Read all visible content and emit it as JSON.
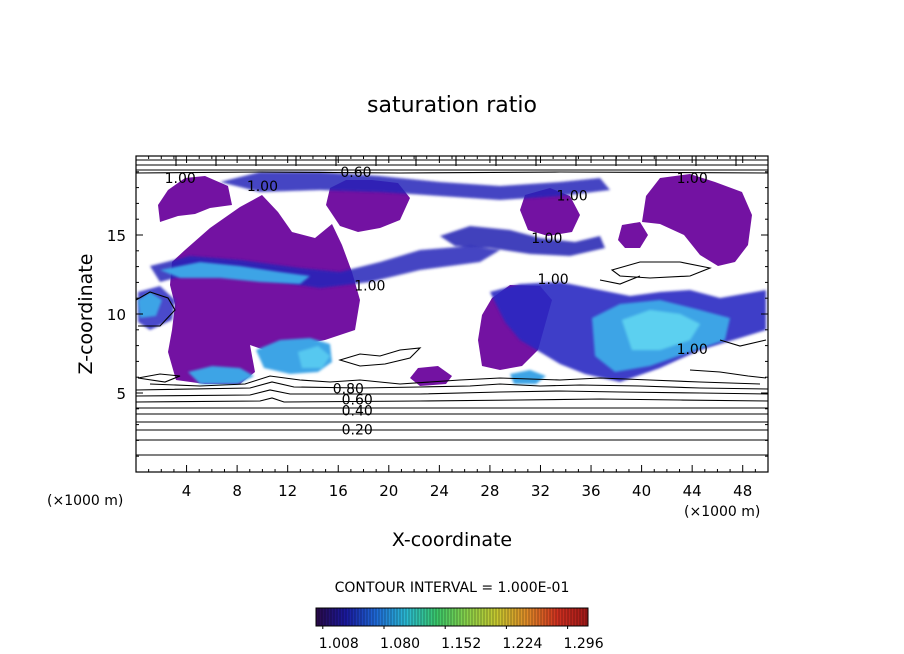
{
  "chart_data": {
    "type": "heatmap",
    "title": "saturation ratio",
    "xlabel": "X-coordinate",
    "ylabel": "Z-coordinate",
    "x_unit": "(×1000 m)",
    "z_unit": "(×1000 m)",
    "xlim": [
      0,
      50
    ],
    "ylim": [
      0,
      20
    ],
    "x_ticks": [
      4,
      8,
      12,
      16,
      20,
      24,
      28,
      32,
      36,
      40,
      44,
      48
    ],
    "y_ticks": [
      5,
      10,
      15
    ],
    "contour_interval_label": "CONTOUR INTERVAL = 1.000E-01",
    "contour_interval": 0.1,
    "contour_labels": [
      {
        "text": "0.20",
        "x": 17.5,
        "z": 2.7
      },
      {
        "text": "0.40",
        "x": 17.5,
        "z": 3.9
      },
      {
        "text": "0.60",
        "x": 17.5,
        "z": 4.6
      },
      {
        "text": "0.80",
        "x": 16.8,
        "z": 5.3
      },
      {
        "text": "0.60",
        "x": 17.4,
        "z": 19.0
      },
      {
        "text": "1.00",
        "x": 3.5,
        "z": 18.6
      },
      {
        "text": "1.00",
        "x": 10.0,
        "z": 18.1
      },
      {
        "text": "1.00",
        "x": 34.5,
        "z": 17.5
      },
      {
        "text": "1.00",
        "x": 32.5,
        "z": 14.8
      },
      {
        "text": "1.00",
        "x": 33.0,
        "z": 12.2
      },
      {
        "text": "1.00",
        "x": 18.5,
        "z": 11.8
      },
      {
        "text": "1.00",
        "x": 44.0,
        "z": 18.6
      },
      {
        "text": "1.00",
        "x": 44.0,
        "z": 7.8
      }
    ],
    "colorbar": {
      "range": [
        1.0,
        1.32
      ],
      "tick_values": [
        1.008,
        1.08,
        1.152,
        1.224,
        1.296
      ],
      "tick_labels": [
        "1.008",
        "1.080",
        "1.152",
        "1.224",
        "1.296"
      ],
      "colors": [
        "#2a0a48",
        "#1a1aa0",
        "#1f6bd8",
        "#2bbbd2",
        "#3ac86a",
        "#8ad24a",
        "#c8c830",
        "#e08a28",
        "#d03020",
        "#a01818"
      ]
    },
    "supersaturated_regions": [
      {
        "x": [
          2,
          10
        ],
        "z": [
          5.7,
          13.3
        ],
        "level": "high"
      },
      {
        "x": [
          8,
          18
        ],
        "z": [
          9,
          17
        ],
        "level": "high"
      },
      {
        "x": [
          27,
          35
        ],
        "z": [
          6,
          12
        ],
        "level": "high"
      },
      {
        "x": [
          1,
          12
        ],
        "z": [
          16,
          19
        ],
        "level": "high"
      },
      {
        "x": [
          15,
          22
        ],
        "z": [
          16,
          19
        ],
        "level": "high"
      },
      {
        "x": [
          39,
          47
        ],
        "z": [
          13,
          19
        ],
        "level": "high"
      },
      {
        "x": [
          38,
          50
        ],
        "z": [
          6,
          11
        ],
        "level": "moderate"
      }
    ],
    "grid": false,
    "legend": "bottom-center colorbar"
  }
}
